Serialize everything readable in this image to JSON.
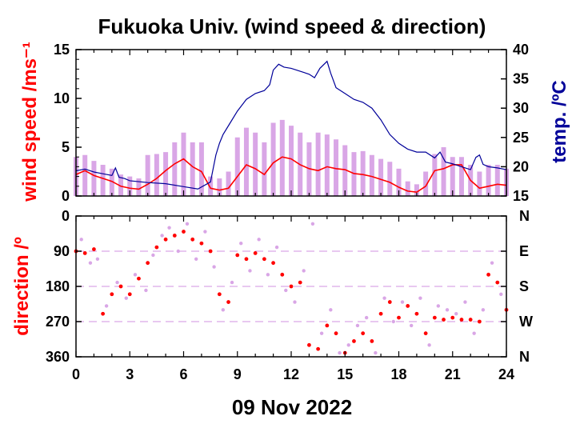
{
  "colors": {
    "speed_max": "#d9a6e6",
    "speed_mean": "#ff0000",
    "temperature": "#000099",
    "direction_raw": "#d9a6e6",
    "direction_mean": "#ff0000",
    "grid": "#d9a6e6",
    "axis": "#000000"
  },
  "chart_data": [
    {
      "type": "line",
      "title": "Fukuoka Univ. (wind speed & direction)",
      "ylabel": "wind speed /ms⁻¹",
      "y2label": "temp. /ºC",
      "xlim": [
        0,
        24
      ],
      "ylim": [
        0,
        15
      ],
      "y2lim": [
        15,
        40
      ],
      "x_ticks": [
        0,
        3,
        6,
        9,
        12,
        15,
        18,
        21,
        24
      ],
      "y_ticks": [
        0,
        5,
        10,
        15
      ],
      "y2_ticks": [
        15,
        20,
        25,
        30,
        35,
        40
      ],
      "series": [
        {
          "role": "wind speed (mean)",
          "axis": "left",
          "x": [
            0,
            0.5,
            1,
            1.5,
            2,
            2.5,
            3,
            3.5,
            4,
            4.5,
            5,
            5.5,
            6,
            6.5,
            7,
            7.5,
            8,
            8.5,
            9,
            9.5,
            10,
            10.5,
            11,
            11.5,
            12,
            12.5,
            13,
            13.5,
            14,
            14.5,
            15,
            15.5,
            16,
            16.5,
            17,
            17.5,
            18,
            18.5,
            19,
            19.5,
            20,
            20.5,
            21,
            21.5,
            22,
            22.5,
            23,
            23.5,
            24
          ],
          "y": [
            2.2,
            2.6,
            2.1,
            1.8,
            1.5,
            1.0,
            0.8,
            0.7,
            1.2,
            1.8,
            2.6,
            3.3,
            3.8,
            3.0,
            2.5,
            0.8,
            0.6,
            0.8,
            2.0,
            3.2,
            2.8,
            2.2,
            3.4,
            4.0,
            3.8,
            3.2,
            2.8,
            2.6,
            3.0,
            2.8,
            2.7,
            2.3,
            2.2,
            2.0,
            1.7,
            1.4,
            0.9,
            0.5,
            0.4,
            1.0,
            2.6,
            2.8,
            3.2,
            3.2,
            1.6,
            0.8,
            1.0,
            1.2,
            1.1
          ]
        },
        {
          "role": "wind speed (max)",
          "axis": "left",
          "x": [
            0,
            0.5,
            1,
            1.5,
            2,
            2.5,
            3,
            3.5,
            4,
            4.5,
            5,
            5.5,
            6,
            6.5,
            7,
            7.5,
            8,
            8.5,
            9,
            9.5,
            10,
            10.5,
            11,
            11.5,
            12,
            12.5,
            13,
            13.5,
            14,
            14.5,
            15,
            15.5,
            16,
            16.5,
            17,
            17.5,
            18,
            18.5,
            19,
            19.5,
            20,
            20.5,
            21,
            21.5,
            22,
            22.5,
            23,
            23.5,
            24
          ],
          "y": [
            4.0,
            4.2,
            3.6,
            3.2,
            2.8,
            2.2,
            2.0,
            1.8,
            4.2,
            4.3,
            4.5,
            5.5,
            6.5,
            5.5,
            5.5,
            2.0,
            1.8,
            2.5,
            6.0,
            7.0,
            6.5,
            5.5,
            7.5,
            7.8,
            7.2,
            6.5,
            5.5,
            6.5,
            6.3,
            5.8,
            5.2,
            4.5,
            4.6,
            4.2,
            3.8,
            3.5,
            2.8,
            1.5,
            1.2,
            2.5,
            4.3,
            5.0,
            4.0,
            4.0,
            3.2,
            2.5,
            3.2,
            3.2,
            2.8
          ]
        },
        {
          "role": "temperature",
          "axis": "right",
          "x": [
            0,
            0.5,
            1,
            1.5,
            2,
            2.2,
            2.4,
            2.7,
            3,
            4,
            5,
            6,
            6.8,
            7.5,
            7.8,
            8,
            8.2,
            8.6,
            9,
            9.5,
            10,
            10.5,
            10.8,
            11,
            11.3,
            11.6,
            12,
            12.5,
            13,
            13.3,
            13.6,
            14,
            14.2,
            14.5,
            15,
            15.5,
            16,
            16.5,
            17,
            17.5,
            18,
            18.5,
            19,
            19.5,
            20,
            20.3,
            20.6,
            21,
            21.5,
            22,
            22.3,
            22.5,
            22.7,
            23,
            23.5,
            24
          ],
          "y": [
            19.3,
            19.6,
            19.1,
            18.8,
            18.5,
            19.8,
            18.2,
            18.0,
            17.6,
            17.3,
            17.1,
            16.6,
            16.2,
            17.4,
            22.0,
            24.0,
            25.5,
            27.5,
            29.5,
            31.5,
            32.5,
            33.0,
            34.0,
            36.5,
            37.5,
            37.0,
            36.8,
            36.3,
            35.8,
            35.2,
            36.8,
            38.0,
            36.0,
            33.5,
            32.5,
            31.5,
            31.0,
            30.0,
            28.0,
            25.5,
            24.0,
            23.0,
            22.5,
            22.5,
            21.5,
            22.5,
            20.8,
            20.5,
            20.0,
            19.5,
            21.6,
            22.0,
            20.4,
            20.0,
            19.8,
            19.5
          ]
        }
      ]
    },
    {
      "type": "scatter",
      "ylabel": "direction /º",
      "xlabel": "09 Nov 2022",
      "xlim": [
        0,
        24
      ],
      "ylim": [
        360,
        0
      ],
      "x_ticks": [
        0,
        3,
        6,
        9,
        12,
        15,
        18,
        21,
        24
      ],
      "y_ticks": [
        0,
        90,
        180,
        270,
        360
      ],
      "y2_ticks": [
        "N",
        "E",
        "S",
        "W",
        "N"
      ],
      "series": [
        {
          "role": "wind direction (mean)",
          "x": [
            0,
            0.5,
            1,
            1.5,
            2,
            2.5,
            3,
            3.5,
            4,
            4.5,
            5,
            5.5,
            6,
            6.5,
            7,
            7.5,
            8,
            8.5,
            9,
            9.5,
            10,
            10.5,
            11,
            11.5,
            12,
            12.5,
            13,
            13.5,
            14,
            14.5,
            15,
            15.5,
            16,
            16.5,
            17,
            17.5,
            18,
            18.5,
            19,
            19.5,
            20,
            20.5,
            21,
            21.5,
            22,
            22.5,
            23,
            23.5,
            24
          ],
          "y": [
            90,
            95,
            85,
            250,
            200,
            180,
            200,
            160,
            120,
            80,
            60,
            50,
            40,
            60,
            70,
            90,
            200,
            220,
            100,
            110,
            95,
            110,
            120,
            150,
            180,
            170,
            330,
            340,
            280,
            300,
            350,
            320,
            300,
            320,
            250,
            220,
            260,
            230,
            250,
            300,
            260,
            265,
            260,
            265,
            265,
            270,
            150,
            170,
            240
          ]
        },
        {
          "role": "wind direction (raw)",
          "x": [
            0.3,
            0.8,
            1.2,
            1.7,
            2.3,
            2.8,
            3.3,
            3.9,
            4.3,
            4.8,
            5.2,
            5.7,
            6.2,
            6.7,
            7.2,
            7.7,
            8.2,
            8.7,
            9.2,
            9.7,
            10.2,
            10.7,
            11.2,
            11.7,
            12.2,
            12.7,
            13.2,
            13.7,
            14.2,
            14.7,
            15.2,
            15.7,
            16.2,
            16.7,
            17.2,
            17.7,
            18.2,
            18.7,
            19.2,
            19.7,
            20.2,
            20.7,
            21.2,
            21.7,
            22.2,
            22.7,
            23.2,
            23.7
          ],
          "y": [
            60,
            120,
            110,
            230,
            170,
            210,
            150,
            190,
            100,
            50,
            30,
            90,
            20,
            110,
            40,
            130,
            240,
            170,
            70,
            140,
            60,
            150,
            80,
            190,
            220,
            140,
            20,
            300,
            240,
            350,
            330,
            280,
            260,
            350,
            210,
            270,
            220,
            280,
            210,
            330,
            230,
            240,
            250,
            220,
            300,
            240,
            120,
            200
          ]
        }
      ]
    }
  ]
}
